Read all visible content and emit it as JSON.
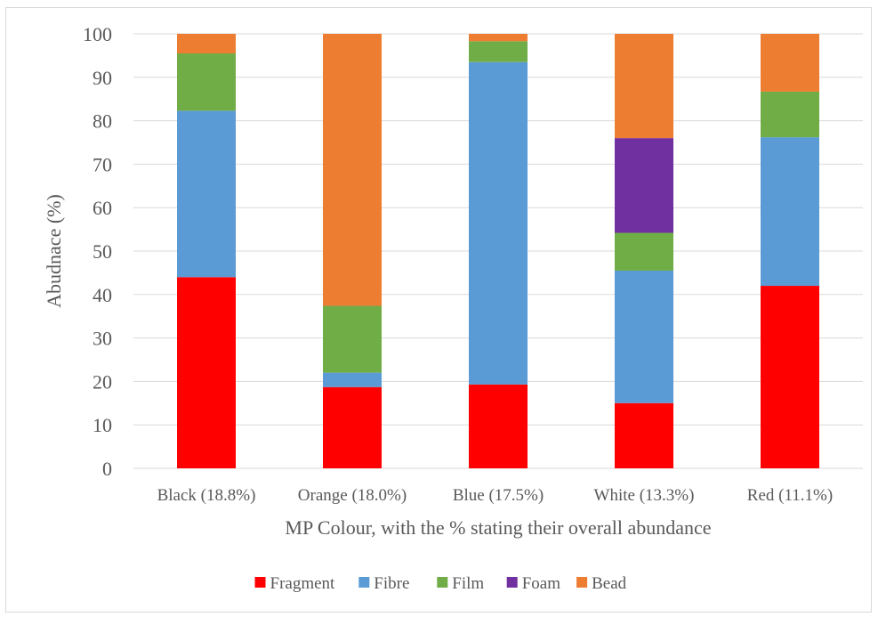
{
  "chart_data": {
    "type": "bar",
    "stacked": true,
    "categories": [
      "Black (18.8%)",
      "Orange (18.0%)",
      "Blue (17.5%)",
      "White (13.3%)",
      "Red (11.1%)"
    ],
    "series": [
      {
        "name": "Fragment",
        "color": "#ff0000",
        "values": [
          44.0,
          18.7,
          19.3,
          15.0,
          42.0
        ]
      },
      {
        "name": "Fibre",
        "color": "#5b9bd5",
        "values": [
          38.3,
          3.3,
          74.2,
          30.5,
          34.2
        ]
      },
      {
        "name": "Film",
        "color": "#70ad47",
        "values": [
          13.2,
          15.4,
          4.8,
          8.7,
          10.5
        ]
      },
      {
        "name": "Foam",
        "color": "#7030a0",
        "values": [
          0,
          0,
          0,
          21.8,
          0
        ]
      },
      {
        "name": "Bead",
        "color": "#ed7d31",
        "values": [
          4.5,
          62.6,
          1.7,
          24.0,
          13.3
        ]
      }
    ],
    "xlabel": "MP Colour, with the % stating their overall abundance",
    "ylabel": "Abudnace (%)",
    "ylim": [
      0,
      100
    ],
    "yticks": [
      0,
      10,
      20,
      30,
      40,
      50,
      60,
      70,
      80,
      90,
      100
    ],
    "grid": true,
    "legend_position": "bottom"
  }
}
